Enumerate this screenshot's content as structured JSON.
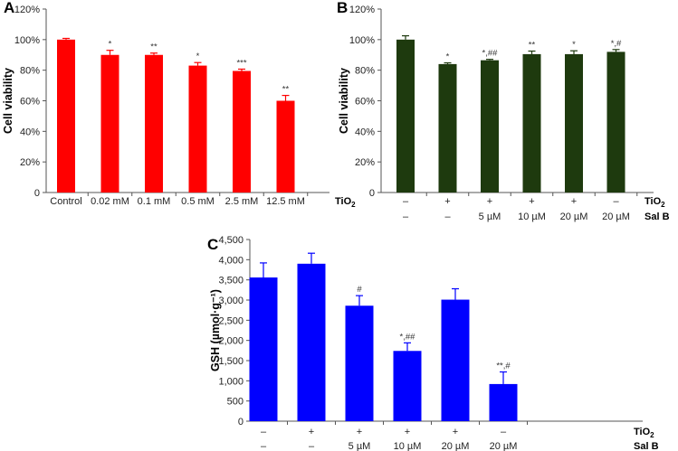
{
  "chart_data": [
    {
      "panel": "A",
      "type": "bar",
      "color": "#ff0000",
      "ylabel": "Cell viability",
      "ylim": [
        0,
        120
      ],
      "yticks": [
        "0",
        "20%",
        "40%",
        "60%",
        "80%",
        "100%",
        "120%"
      ],
      "categories": [
        "Control",
        "0.02 mM",
        "0.1 mM",
        "0.5 mM",
        "2.5 mM",
        "12.5 mM"
      ],
      "row_labels": [
        {
          "label": "TiO",
          "sub": "2"
        }
      ],
      "values": [
        100,
        90,
        90,
        83,
        79.5,
        60
      ],
      "errors": [
        0.8,
        3,
        1.2,
        2,
        1.2,
        3.5
      ],
      "significance": [
        "",
        "*",
        "**",
        "*",
        "***",
        "**"
      ]
    },
    {
      "panel": "B",
      "type": "bar",
      "color": "#1e3a0e",
      "ylabel": "Cell viability",
      "ylim": [
        0,
        120
      ],
      "yticks": [
        "0",
        "20%",
        "40%",
        "60%",
        "80%",
        "100%",
        "120%"
      ],
      "row1": [
        "–",
        "+",
        "+",
        "+",
        "+",
        "–"
      ],
      "row2": [
        "–",
        "–",
        "5 µM",
        "10 µM",
        "20 µM",
        "20 µM"
      ],
      "row_labels": [
        {
          "label": "TiO",
          "sub": "2"
        },
        {
          "label": "Sal B",
          "sub": ""
        }
      ],
      "values": [
        100,
        84,
        86.5,
        90.5,
        90.5,
        92
      ],
      "errors": [
        2.5,
        0.8,
        0.6,
        2,
        2.2,
        1.5
      ],
      "significance": [
        "",
        "*",
        "*,##",
        "**",
        "*",
        "*,#"
      ]
    },
    {
      "panel": "C",
      "type": "bar",
      "color": "#0000ff",
      "ylabel": "GSH (µmol·g⁻¹)",
      "ylim": [
        0,
        4500
      ],
      "yticks": [
        "0",
        "500",
        "1,000",
        "1,500",
        "2,000",
        "2,500",
        "3,000",
        "3,500",
        "4,000",
        "4,500"
      ],
      "row1": [
        "–",
        "+",
        "+",
        "+",
        "+",
        "–"
      ],
      "row2": [
        "–",
        "–",
        "5 µM",
        "10 µM",
        "20 µM",
        "20 µM"
      ],
      "row_labels": [
        {
          "label": "TiO",
          "sub": "2"
        },
        {
          "label": "Sal B",
          "sub": ""
        }
      ],
      "values": [
        3560,
        3900,
        2860,
        1740,
        3010,
        920
      ],
      "errors": [
        360,
        260,
        250,
        200,
        270,
        300
      ],
      "significance": [
        "",
        "",
        "#",
        "*,##",
        "",
        "**,#"
      ]
    }
  ]
}
